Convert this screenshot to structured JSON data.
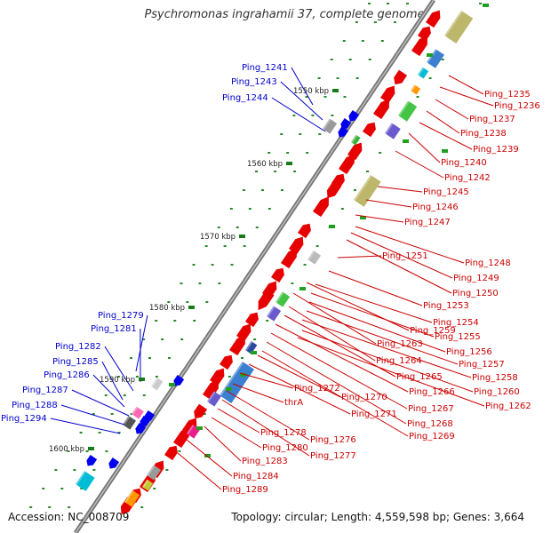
{
  "title": "Psychromonas ingrahamii 37, complete genome",
  "footer": {
    "accession": "Accession: NC_008709",
    "summary": "Topology: circular; Length: 4,559,598 bp; Genes: 3,664"
  },
  "scale": {
    "ticks": [
      "1550 kbp",
      "1560 kbp",
      "1570 kbp",
      "1580 kbp",
      "1590 kbp",
      "1600 kbp"
    ]
  },
  "colors": {
    "forward_label": "#cc0000",
    "reverse_label": "#0000cc",
    "backbone": "#777777",
    "tick": "#2a8a2a"
  },
  "labels_forward": [
    "Ping_1235",
    "Ping_1236",
    "Ping_1237",
    "Ping_1238",
    "Ping_1239",
    "Ping_1240",
    "Ping_1242",
    "Ping_1245",
    "Ping_1246",
    "Ping_1247",
    "Ping_1248",
    "Ping_1249",
    "Ping_1250",
    "Ping_1251",
    "Ping_1253",
    "Ping_1254",
    "Ping_1255",
    "Ping_1256",
    "Ping_1257",
    "Ping_1258",
    "Ping_1259",
    "Ping_1260",
    "Ping_1262",
    "Ping_1263",
    "Ping_1264",
    "Ping_1265",
    "Ping_1266",
    "Ping_1267",
    "Ping_1268",
    "Ping_1269",
    "Ping_1270",
    "Ping_1271",
    "Ping_1272",
    "thrA",
    "Ping_1276",
    "Ping_1277",
    "Ping_1278",
    "Ping_1280",
    "Ping_1283",
    "Ping_1284",
    "Ping_1289"
  ],
  "labels_reverse": [
    "Ping_1241",
    "Ping_1243",
    "Ping_1244",
    "Ping_1279",
    "Ping_1281",
    "Ping_1282",
    "Ping_1285",
    "Ping_1286",
    "Ping_1287",
    "Ping_1288",
    "Ping_1294"
  ]
}
